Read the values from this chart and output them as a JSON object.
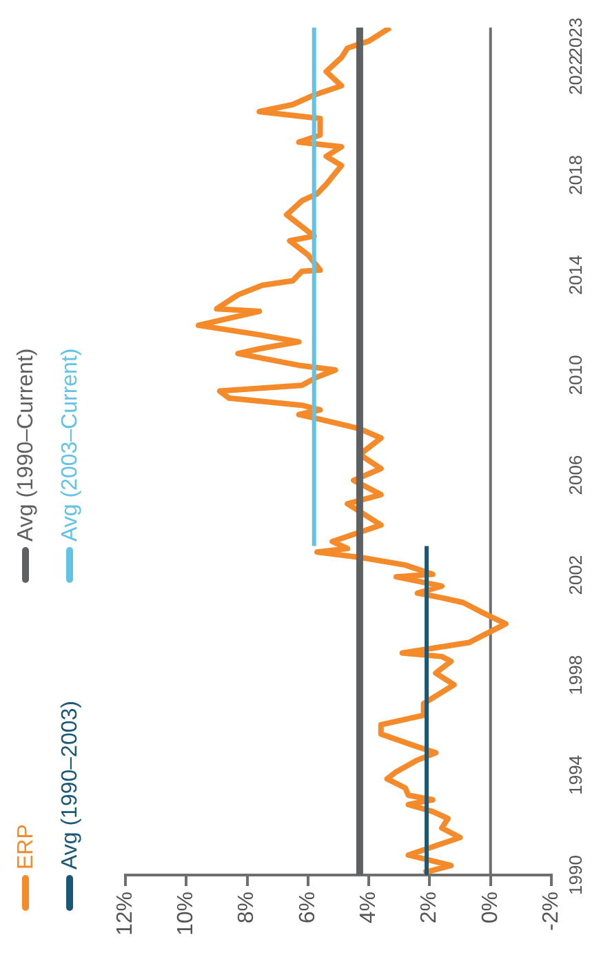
{
  "chart_data": {
    "type": "line",
    "series": [
      {
        "name": "ERP",
        "color": "#f58a2a",
        "x": [
          2.2,
          1.3,
          2.7,
          1.8,
          1.0,
          1.6,
          1.4,
          1.9,
          2.7,
          1.9,
          2.7,
          2.8,
          3.4,
          3.1,
          2.4,
          1.8,
          2.5,
          3.6,
          3.6,
          2.2,
          2.2,
          1.2,
          1.8,
          1.3,
          1.6,
          2.9,
          0.7,
          0.4,
          -0.5,
          0.3,
          0.9,
          1.6,
          2.4,
          1.6,
          3.1,
          1.9,
          2.8,
          4.2,
          5.7,
          4.7,
          5.2,
          4.5,
          3.6,
          4.7,
          3.6,
          4.5,
          3.6,
          4.3,
          3.6,
          4.3,
          5.6,
          6.3,
          5.6,
          6.2,
          8.6,
          8.9,
          6.2,
          5.7,
          5.1,
          6.3,
          8.3,
          7.6,
          6.3,
          7.6,
          9.6,
          7.6,
          9.0,
          8.3,
          7.5,
          6.5,
          6.2,
          5.6,
          6.0,
          6.6,
          5.8,
          6.7,
          6.2,
          5.7,
          5.4,
          4.9,
          5.4,
          4.9,
          6.3,
          5.6,
          5.6,
          7.6,
          6.5,
          5.8,
          4.9,
          5.4,
          4.9,
          4.7,
          4.0,
          3.3
        ],
        "values": [
          1990.09,
          1990.38,
          1990.8,
          1991.17,
          1991.5,
          1991.88,
          1992.26,
          1992.54,
          1992.82,
          1993.01,
          1993.19,
          1993.48,
          1993.85,
          1994.13,
          1994.6,
          1994.89,
          1995.17,
          1995.64,
          1996.01,
          1996.39,
          1996.86,
          1997.61,
          1998.08,
          1998.55,
          1998.74,
          1998.88,
          1999.3,
          1999.49,
          2000.05,
          2000.52,
          2000.9,
          2001.09,
          2001.28,
          2001.56,
          2001.93,
          2002.03,
          2002.4,
          2002.69,
          2002.92,
          2003.06,
          2003.34,
          2003.63,
          2004.0,
          2004.85,
          2005.22,
          2005.79,
          2006.26,
          2006.82,
          2007.48,
          2007.85,
          2008.23,
          2008.42,
          2008.61,
          2008.79,
          2009.08,
          2009.36,
          2009.59,
          2009.92,
          2010.2,
          2010.39,
          2010.86,
          2011.05,
          2011.33,
          2011.61,
          2011.99,
          2012.55,
          2012.65,
          2013.21,
          2013.59,
          2013.77,
          2014.15,
          2014.2,
          2014.81,
          2015.37,
          2015.56,
          2016.41,
          2016.97,
          2017.25,
          2017.63,
          2018.38,
          2018.75,
          2019.13,
          2019.32,
          2019.6,
          2020.26,
          2020.54,
          2020.82,
          2021.2,
          2021.57,
          2022.14,
          2022.7,
          2023.08,
          2023.36,
          2023.9
        ]
      },
      {
        "name": "Avg (1990–2003)",
        "color": "#1b5877",
        "x": [
          2.1,
          2.1
        ],
        "values": [
          1990,
          2003.16
        ]
      },
      {
        "name": "Avg (1990–Current)",
        "color": "#5f6062",
        "x": [
          4.3,
          4.3
        ],
        "values": [
          1990,
          2023.9
        ]
      },
      {
        "name": "Avg (2003–Current)",
        "color": "#62c3e4",
        "x": [
          5.8,
          5.8
        ],
        "values": [
          2003.16,
          2023.9
        ]
      }
    ],
    "xlim": [
      12,
      -2
    ],
    "xticks": [
      {
        "value": 12,
        "label": "12%"
      },
      {
        "value": 10,
        "label": "10%"
      },
      {
        "value": 8,
        "label": "8%"
      },
      {
        "value": 6,
        "label": "6%"
      },
      {
        "value": 4,
        "label": "4%"
      },
      {
        "value": 2,
        "label": "2%"
      },
      {
        "value": 0,
        "label": "0%"
      },
      {
        "value": -2,
        "label": "-2%"
      }
    ],
    "ylim": [
      1990,
      2023.9
    ],
    "yticks": [
      1990,
      1994,
      1998,
      2002,
      2006,
      2010,
      2014,
      2018,
      2022,
      {
        "value": 2023.5,
        "label": "2023"
      }
    ],
    "ref_lines": [
      {
        "axis": "x",
        "value": 0,
        "color": "#6d6e70"
      }
    ],
    "legend": "left",
    "marker": "none",
    "line_style": "solid"
  }
}
